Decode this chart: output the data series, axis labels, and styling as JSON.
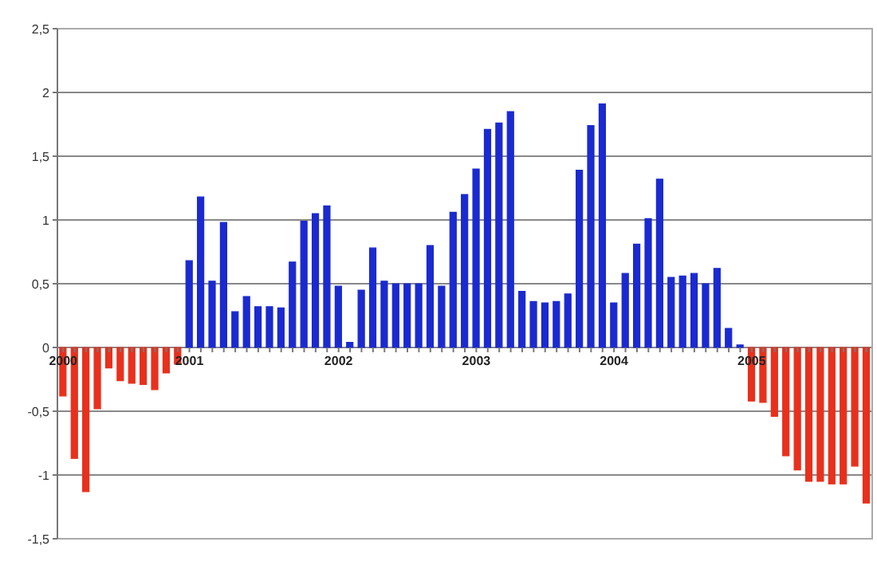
{
  "chart_data": {
    "type": "bar",
    "categories": [
      "2000",
      null,
      null,
      null,
      null,
      null,
      null,
      null,
      null,
      null,
      null,
      "2001",
      null,
      null,
      null,
      null,
      null,
      null,
      null,
      null,
      null,
      null,
      null,
      null,
      "2002",
      null,
      null,
      null,
      null,
      null,
      null,
      null,
      null,
      null,
      null,
      null,
      "2003",
      null,
      null,
      null,
      null,
      null,
      null,
      null,
      null,
      null,
      null,
      null,
      "2004",
      null,
      null,
      null,
      null,
      null,
      null,
      null,
      null,
      null,
      null,
      null,
      "2005",
      null,
      null,
      null,
      null,
      null,
      null,
      null,
      null,
      null,
      null
    ],
    "values": [
      -0.38,
      -0.87,
      -1.13,
      -0.48,
      -0.16,
      -0.26,
      -0.28,
      -0.29,
      -0.33,
      -0.2,
      -0.13,
      0.68,
      1.18,
      0.52,
      0.98,
      0.28,
      0.4,
      0.32,
      0.32,
      0.31,
      0.67,
      0.99,
      1.05,
      1.11,
      0.48,
      0.04,
      0.45,
      0.78,
      0.52,
      0.5,
      0.5,
      0.5,
      0.8,
      0.48,
      1.06,
      1.2,
      1.4,
      1.71,
      1.76,
      1.85,
      0.44,
      0.36,
      0.35,
      0.36,
      0.42,
      1.39,
      1.74,
      1.91,
      0.35,
      0.58,
      0.81,
      1.01,
      1.32,
      0.55,
      0.56,
      0.58,
      0.5,
      0.62,
      0.15,
      0.02,
      -0.42,
      -0.43,
      -0.54,
      -0.85,
      -0.96,
      -1.05,
      -1.05,
      -1.07,
      -1.07,
      -0.93,
      -1.22
    ],
    "colors": [
      "#e8301c",
      "#e8301c",
      "#e8301c",
      "#e8301c",
      "#e8301c",
      "#e8301c",
      "#e8301c",
      "#e8301c",
      "#e8301c",
      "#e8301c",
      "#e8301c",
      "#1a2ad0",
      "#1a2ad0",
      "#1a2ad0",
      "#1a2ad0",
      "#1a2ad0",
      "#1a2ad0",
      "#1a2ad0",
      "#1a2ad0",
      "#1a2ad0",
      "#1a2ad0",
      "#1a2ad0",
      "#1a2ad0",
      "#1a2ad0",
      "#1a2ad0",
      "#1a2ad0",
      "#1a2ad0",
      "#1a2ad0",
      "#1a2ad0",
      "#1a2ad0",
      "#1a2ad0",
      "#1a2ad0",
      "#1a2ad0",
      "#1a2ad0",
      "#1a2ad0",
      "#1a2ad0",
      "#1a2ad0",
      "#1a2ad0",
      "#1a2ad0",
      "#1a2ad0",
      "#1a2ad0",
      "#1a2ad0",
      "#1a2ad0",
      "#1a2ad0",
      "#1a2ad0",
      "#1a2ad0",
      "#1a2ad0",
      "#1a2ad0",
      "#1a2ad0",
      "#1a2ad0",
      "#1a2ad0",
      "#1a2ad0",
      "#1a2ad0",
      "#1a2ad0",
      "#1a2ad0",
      "#1a2ad0",
      "#1a2ad0",
      "#1a2ad0",
      "#1a2ad0",
      "#1a2ad0",
      "#e8301c",
      "#e8301c",
      "#e8301c",
      "#e8301c",
      "#e8301c",
      "#e8301c",
      "#e8301c",
      "#e8301c",
      "#e8301c",
      "#e8301c",
      "#e8301c"
    ],
    "ylim": [
      -1.5,
      2.5
    ],
    "yticks": [
      {
        "value": -1.5,
        "label": "-1,5"
      },
      {
        "value": -1,
        "label": "-1"
      },
      {
        "value": -0.5,
        "label": "-0,5"
      },
      0,
      {
        "value": 0.5,
        "label": "0,5"
      },
      1,
      {
        "value": 1.5,
        "label": "1,5"
      },
      2,
      {
        "value": 2.5,
        "label": "2,5"
      }
    ],
    "grid": "y"
  }
}
